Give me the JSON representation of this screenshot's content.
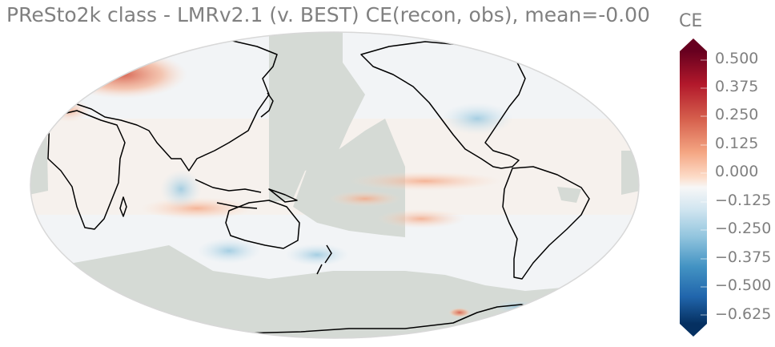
{
  "title": "PReSto2k class - LMRv2.1 (v. BEST) CE(recon, obs), mean=-0.00",
  "colorbar": {
    "label": "CE",
    "ticks": [
      "0.500",
      "0.375",
      "0.250",
      "0.125",
      "0.000",
      "−0.125",
      "−0.250",
      "−0.375",
      "−0.500",
      "−0.625"
    ],
    "tick_values": [
      0.5,
      0.375,
      0.25,
      0.125,
      0.0,
      -0.125,
      -0.25,
      -0.375,
      -0.5,
      -0.625
    ],
    "range": [
      -0.625,
      0.5
    ],
    "colors": {
      "max": "#67001f",
      "pos": "#b2182b",
      "mid": "#f7f7f7",
      "neg": "#2166ac",
      "min": "#053061",
      "missing": "#d5dad5",
      "coast": "#000000"
    }
  },
  "map": {
    "projection": "Robinson",
    "center_longitude": "180",
    "field": "CE",
    "mean": "-0.00"
  }
}
